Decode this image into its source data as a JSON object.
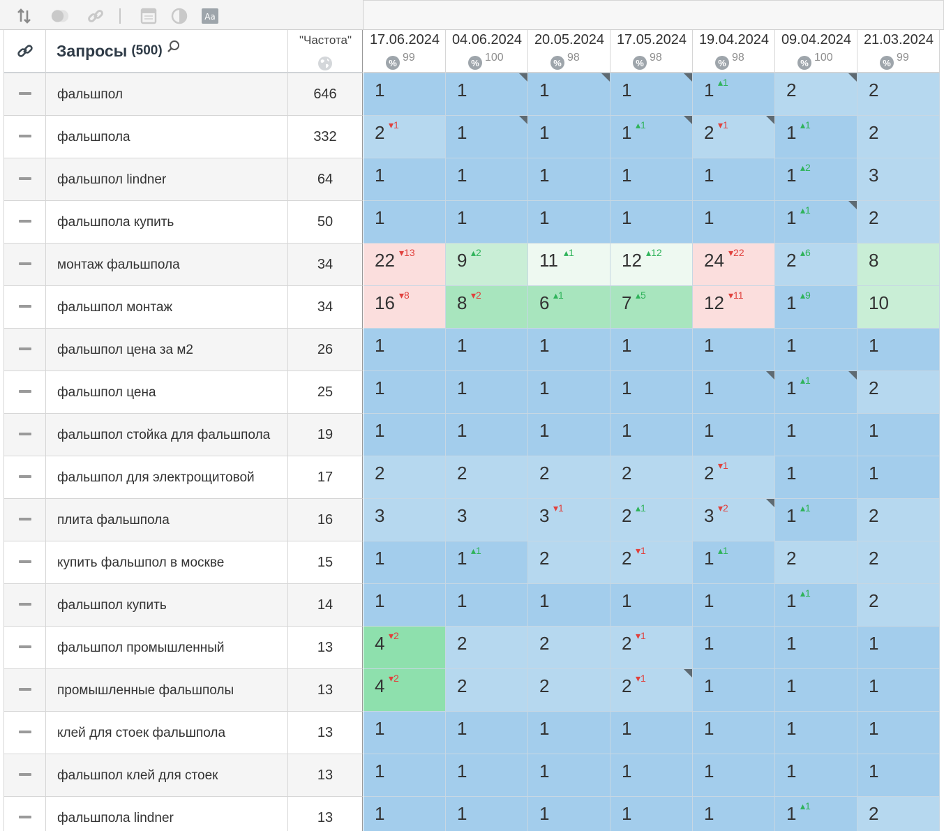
{
  "header": {
    "query_title": "Запросы",
    "query_count": "(500)",
    "freq_title": "\"Частота\""
  },
  "dates": [
    {
      "date": "17.06.2024",
      "pct": "99"
    },
    {
      "date": "04.06.2024",
      "pct": "100"
    },
    {
      "date": "20.05.2024",
      "pct": "98"
    },
    {
      "date": "17.05.2024",
      "pct": "98"
    },
    {
      "date": "19.04.2024",
      "pct": "98"
    },
    {
      "date": "09.04.2024",
      "pct": "100"
    },
    {
      "date": "21.03.2024",
      "pct": "99"
    }
  ],
  "colors": {
    "blue_dark": "#a3cdec",
    "blue_light": "#b6d8ef",
    "pink": "#fbdedd",
    "green_pale": "#eef9f1",
    "green_light": "#c9eed6",
    "green_mid": "#a8e5be",
    "green_strong": "#8ee0ad"
  },
  "rows": [
    {
      "query": "фальшпол",
      "freq": "646",
      "cells": [
        {
          "v": "1",
          "bg": "blue_dark"
        },
        {
          "v": "1",
          "bg": "blue_dark",
          "corner": true
        },
        {
          "v": "1",
          "bg": "blue_dark",
          "corner": true
        },
        {
          "v": "1",
          "bg": "blue_dark",
          "corner": true
        },
        {
          "v": "1",
          "d": "1",
          "dir": "up",
          "bg": "blue_dark"
        },
        {
          "v": "2",
          "bg": "blue_light",
          "corner": true
        },
        {
          "v": "2",
          "bg": "blue_light"
        }
      ]
    },
    {
      "query": "фальшпола",
      "freq": "332",
      "cells": [
        {
          "v": "2",
          "d": "1",
          "dir": "down",
          "bg": "blue_light"
        },
        {
          "v": "1",
          "bg": "blue_dark",
          "corner": true
        },
        {
          "v": "1",
          "bg": "blue_dark"
        },
        {
          "v": "1",
          "d": "1",
          "dir": "up",
          "bg": "blue_dark",
          "corner": true
        },
        {
          "v": "2",
          "d": "1",
          "dir": "down",
          "bg": "blue_light",
          "corner": true
        },
        {
          "v": "1",
          "d": "1",
          "dir": "up",
          "bg": "blue_dark"
        },
        {
          "v": "2",
          "bg": "blue_light"
        }
      ]
    },
    {
      "query": "фальшпол lindner",
      "freq": "64",
      "cells": [
        {
          "v": "1",
          "bg": "blue_dark"
        },
        {
          "v": "1",
          "bg": "blue_dark"
        },
        {
          "v": "1",
          "bg": "blue_dark"
        },
        {
          "v": "1",
          "bg": "blue_dark"
        },
        {
          "v": "1",
          "bg": "blue_dark"
        },
        {
          "v": "1",
          "d": "2",
          "dir": "up",
          "bg": "blue_dark"
        },
        {
          "v": "3",
          "bg": "blue_light"
        }
      ]
    },
    {
      "query": "фальшпола купить",
      "freq": "50",
      "cells": [
        {
          "v": "1",
          "bg": "blue_dark"
        },
        {
          "v": "1",
          "bg": "blue_dark"
        },
        {
          "v": "1",
          "bg": "blue_dark"
        },
        {
          "v": "1",
          "bg": "blue_dark"
        },
        {
          "v": "1",
          "bg": "blue_dark"
        },
        {
          "v": "1",
          "d": "1",
          "dir": "up",
          "bg": "blue_dark",
          "corner": true
        },
        {
          "v": "2",
          "bg": "blue_light"
        }
      ]
    },
    {
      "query": "монтаж фальшпола",
      "freq": "34",
      "cells": [
        {
          "v": "22",
          "d": "13",
          "dir": "down",
          "bg": "pink"
        },
        {
          "v": "9",
          "d": "2",
          "dir": "up",
          "bg": "green_light"
        },
        {
          "v": "11",
          "d": "1",
          "dir": "up",
          "bg": "green_pale"
        },
        {
          "v": "12",
          "d": "12",
          "dir": "up",
          "bg": "green_pale"
        },
        {
          "v": "24",
          "d": "22",
          "dir": "down",
          "bg": "pink"
        },
        {
          "v": "2",
          "d": "6",
          "dir": "up",
          "bg": "blue_light"
        },
        {
          "v": "8",
          "bg": "green_light"
        }
      ]
    },
    {
      "query": "фальшпол монтаж",
      "freq": "34",
      "cells": [
        {
          "v": "16",
          "d": "8",
          "dir": "down",
          "bg": "pink"
        },
        {
          "v": "8",
          "d": "2",
          "dir": "down",
          "bg": "green_mid"
        },
        {
          "v": "6",
          "d": "1",
          "dir": "up",
          "bg": "green_mid"
        },
        {
          "v": "7",
          "d": "5",
          "dir": "up",
          "bg": "green_mid"
        },
        {
          "v": "12",
          "d": "11",
          "dir": "down",
          "bg": "pink"
        },
        {
          "v": "1",
          "d": "9",
          "dir": "up",
          "bg": "blue_dark"
        },
        {
          "v": "10",
          "bg": "green_light"
        }
      ]
    },
    {
      "query": "фальшпол цена за м2",
      "freq": "26",
      "cells": [
        {
          "v": "1",
          "bg": "blue_dark"
        },
        {
          "v": "1",
          "bg": "blue_dark"
        },
        {
          "v": "1",
          "bg": "blue_dark"
        },
        {
          "v": "1",
          "bg": "blue_dark"
        },
        {
          "v": "1",
          "bg": "blue_dark"
        },
        {
          "v": "1",
          "bg": "blue_dark"
        },
        {
          "v": "1",
          "bg": "blue_dark"
        }
      ]
    },
    {
      "query": "фальшпол цена",
      "freq": "25",
      "cells": [
        {
          "v": "1",
          "bg": "blue_dark"
        },
        {
          "v": "1",
          "bg": "blue_dark"
        },
        {
          "v": "1",
          "bg": "blue_dark"
        },
        {
          "v": "1",
          "bg": "blue_dark"
        },
        {
          "v": "1",
          "bg": "blue_dark",
          "corner": true
        },
        {
          "v": "1",
          "d": "1",
          "dir": "up",
          "bg": "blue_dark",
          "corner": true
        },
        {
          "v": "2",
          "bg": "blue_light"
        }
      ]
    },
    {
      "query": "фальшпол стойка для фальшпола",
      "freq": "19",
      "cells": [
        {
          "v": "1",
          "bg": "blue_dark"
        },
        {
          "v": "1",
          "bg": "blue_dark"
        },
        {
          "v": "1",
          "bg": "blue_dark"
        },
        {
          "v": "1",
          "bg": "blue_dark"
        },
        {
          "v": "1",
          "bg": "blue_dark"
        },
        {
          "v": "1",
          "bg": "blue_dark"
        },
        {
          "v": "1",
          "bg": "blue_dark"
        }
      ]
    },
    {
      "query": "фальшпол для электрощитовой",
      "freq": "17",
      "cells": [
        {
          "v": "2",
          "bg": "blue_light"
        },
        {
          "v": "2",
          "bg": "blue_light"
        },
        {
          "v": "2",
          "bg": "blue_light"
        },
        {
          "v": "2",
          "bg": "blue_light"
        },
        {
          "v": "2",
          "d": "1",
          "dir": "down",
          "bg": "blue_light"
        },
        {
          "v": "1",
          "bg": "blue_dark"
        },
        {
          "v": "1",
          "bg": "blue_dark"
        }
      ]
    },
    {
      "query": "плита фальшпола",
      "freq": "16",
      "cells": [
        {
          "v": "3",
          "bg": "blue_light"
        },
        {
          "v": "3",
          "bg": "blue_light"
        },
        {
          "v": "3",
          "d": "1",
          "dir": "down",
          "bg": "blue_light"
        },
        {
          "v": "2",
          "d": "1",
          "dir": "up",
          "bg": "blue_light"
        },
        {
          "v": "3",
          "d": "2",
          "dir": "down",
          "bg": "blue_light",
          "corner": true
        },
        {
          "v": "1",
          "d": "1",
          "dir": "up",
          "bg": "blue_dark"
        },
        {
          "v": "2",
          "bg": "blue_light"
        }
      ]
    },
    {
      "query": "купить фальшпол в москве",
      "freq": "15",
      "cells": [
        {
          "v": "1",
          "bg": "blue_dark"
        },
        {
          "v": "1",
          "d": "1",
          "dir": "up",
          "bg": "blue_dark"
        },
        {
          "v": "2",
          "bg": "blue_light"
        },
        {
          "v": "2",
          "d": "1",
          "dir": "down",
          "bg": "blue_light"
        },
        {
          "v": "1",
          "d": "1",
          "dir": "up",
          "bg": "blue_dark"
        },
        {
          "v": "2",
          "bg": "blue_light"
        },
        {
          "v": "2",
          "bg": "blue_light"
        }
      ]
    },
    {
      "query": "фальшпол купить",
      "freq": "14",
      "cells": [
        {
          "v": "1",
          "bg": "blue_dark"
        },
        {
          "v": "1",
          "bg": "blue_dark"
        },
        {
          "v": "1",
          "bg": "blue_dark"
        },
        {
          "v": "1",
          "bg": "blue_dark"
        },
        {
          "v": "1",
          "bg": "blue_dark"
        },
        {
          "v": "1",
          "d": "1",
          "dir": "up",
          "bg": "blue_dark"
        },
        {
          "v": "2",
          "bg": "blue_light"
        }
      ]
    },
    {
      "query": "фальшпол промышленный",
      "freq": "13",
      "cells": [
        {
          "v": "4",
          "d": "2",
          "dir": "down",
          "bg": "green_strong"
        },
        {
          "v": "2",
          "bg": "blue_light"
        },
        {
          "v": "2",
          "bg": "blue_light"
        },
        {
          "v": "2",
          "d": "1",
          "dir": "down",
          "bg": "blue_light"
        },
        {
          "v": "1",
          "bg": "blue_dark"
        },
        {
          "v": "1",
          "bg": "blue_dark"
        },
        {
          "v": "1",
          "bg": "blue_dark"
        }
      ]
    },
    {
      "query": "промышленные фальшполы",
      "freq": "13",
      "cells": [
        {
          "v": "4",
          "d": "2",
          "dir": "down",
          "bg": "green_strong"
        },
        {
          "v": "2",
          "bg": "blue_light"
        },
        {
          "v": "2",
          "bg": "blue_light"
        },
        {
          "v": "2",
          "d": "1",
          "dir": "down",
          "bg": "blue_light",
          "corner": true
        },
        {
          "v": "1",
          "bg": "blue_dark"
        },
        {
          "v": "1",
          "bg": "blue_dark"
        },
        {
          "v": "1",
          "bg": "blue_dark"
        }
      ]
    },
    {
      "query": "клей для стоек фальшпола",
      "freq": "13",
      "cells": [
        {
          "v": "1",
          "bg": "blue_dark"
        },
        {
          "v": "1",
          "bg": "blue_dark"
        },
        {
          "v": "1",
          "bg": "blue_dark"
        },
        {
          "v": "1",
          "bg": "blue_dark"
        },
        {
          "v": "1",
          "bg": "blue_dark"
        },
        {
          "v": "1",
          "bg": "blue_dark"
        },
        {
          "v": "1",
          "bg": "blue_dark"
        }
      ]
    },
    {
      "query": "фальшпол клей для стоек",
      "freq": "13",
      "cells": [
        {
          "v": "1",
          "bg": "blue_dark"
        },
        {
          "v": "1",
          "bg": "blue_dark"
        },
        {
          "v": "1",
          "bg": "blue_dark"
        },
        {
          "v": "1",
          "bg": "blue_dark"
        },
        {
          "v": "1",
          "bg": "blue_dark"
        },
        {
          "v": "1",
          "bg": "blue_dark"
        },
        {
          "v": "1",
          "bg": "blue_dark"
        }
      ]
    },
    {
      "query": "фальшпола lindner",
      "freq": "13",
      "cells": [
        {
          "v": "1",
          "bg": "blue_dark"
        },
        {
          "v": "1",
          "bg": "blue_dark"
        },
        {
          "v": "1",
          "bg": "blue_dark"
        },
        {
          "v": "1",
          "bg": "blue_dark"
        },
        {
          "v": "1",
          "bg": "blue_dark"
        },
        {
          "v": "1",
          "d": "1",
          "dir": "up",
          "bg": "blue_dark"
        },
        {
          "v": "2",
          "bg": "blue_light"
        }
      ]
    }
  ]
}
